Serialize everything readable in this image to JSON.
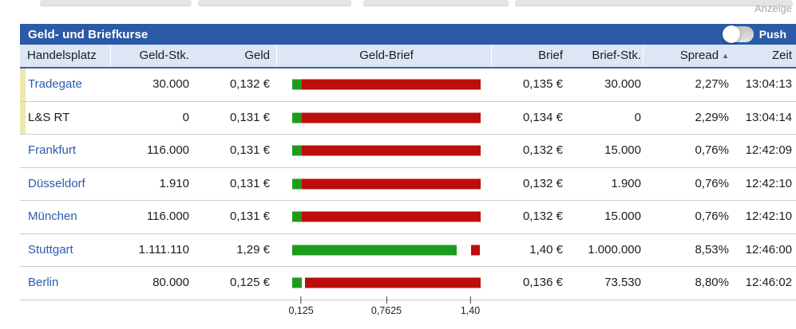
{
  "ad_label": "Anzeige",
  "panel": {
    "title": "Geld- und Briefkurse",
    "push_label": "Push",
    "columns": [
      "Handelsplatz",
      "Geld-Stk.",
      "Geld",
      "Geld-Brief",
      "Brief",
      "Brief-Stk.",
      "Spread",
      "Zeit"
    ],
    "sort_arrow": "▲",
    "colors": {
      "title_bar": "#2b5aa6",
      "header_bg": "#dce6f5",
      "bid_green": "#1c9c1c",
      "ask_red": "#bd0d0d",
      "highlight_marker": "#ece8ae",
      "link_blue": "#2a5cad"
    },
    "rows": [
      {
        "venue": "Tradegate",
        "is_link": true,
        "marker": true,
        "geld_stk": "30.000",
        "geld": "0,132 €",
        "brief": "0,135 €",
        "brief_stk": "30.000",
        "spread": "2,27%",
        "zeit": "13:04:13",
        "bar": {
          "green": [
            0,
            5.1
          ],
          "red": [
            5.1,
            100
          ]
        }
      },
      {
        "venue": "L&S RT",
        "is_link": false,
        "marker": true,
        "geld_stk": "0",
        "geld": "0,131 €",
        "brief": "0,134 €",
        "brief_stk": "0",
        "spread": "2,29%",
        "zeit": "13:04:14",
        "bar": {
          "green": [
            0,
            5.1
          ],
          "red": [
            5.1,
            100
          ]
        }
      },
      {
        "venue": "Frankfurt",
        "is_link": true,
        "marker": false,
        "geld_stk": "116.000",
        "geld": "0,131 €",
        "brief": "0,132 €",
        "brief_stk": "15.000",
        "spread": "0,76%",
        "zeit": "12:42:09",
        "bar": {
          "green": [
            0,
            5.1
          ],
          "red": [
            5.1,
            100
          ]
        }
      },
      {
        "venue": "Düsseldorf",
        "is_link": true,
        "marker": false,
        "geld_stk": "1.910",
        "geld": "0,131 €",
        "brief": "0,132 €",
        "brief_stk": "1.900",
        "spread": "0,76%",
        "zeit": "12:42:10",
        "bar": {
          "green": [
            0,
            5.1
          ],
          "red": [
            5.1,
            100
          ]
        }
      },
      {
        "venue": "München",
        "is_link": true,
        "marker": false,
        "geld_stk": "116.000",
        "geld": "0,131 €",
        "brief": "0,132 €",
        "brief_stk": "15.000",
        "spread": "0,76%",
        "zeit": "12:42:10",
        "bar": {
          "green": [
            0,
            5.1
          ],
          "red": [
            5.1,
            100
          ]
        }
      },
      {
        "venue": "Stuttgart",
        "is_link": true,
        "marker": false,
        "geld_stk": "1.111.110",
        "geld": "1,29 €",
        "brief": "1,40 €",
        "brief_stk": "1.000.000",
        "spread": "8,53%",
        "zeit": "12:46:00",
        "bar": {
          "green": [
            0,
            87.3
          ],
          "red": [
            95,
            99.7
          ]
        }
      },
      {
        "venue": "Berlin",
        "is_link": true,
        "marker": false,
        "geld_stk": "80.000",
        "geld": "0,125 €",
        "brief": "0,136 €",
        "brief_stk": "73.530",
        "spread": "8,80%",
        "zeit": "12:46:02",
        "bar": {
          "green": [
            0,
            5.1
          ],
          "red": [
            6.8,
            100
          ]
        }
      }
    ],
    "axis": {
      "ticks": [
        {
          "label": "0,125",
          "pos": 4.7
        },
        {
          "label": "0,7625",
          "pos": 50
        },
        {
          "label": "1,40",
          "pos": 94.5
        }
      ]
    }
  }
}
